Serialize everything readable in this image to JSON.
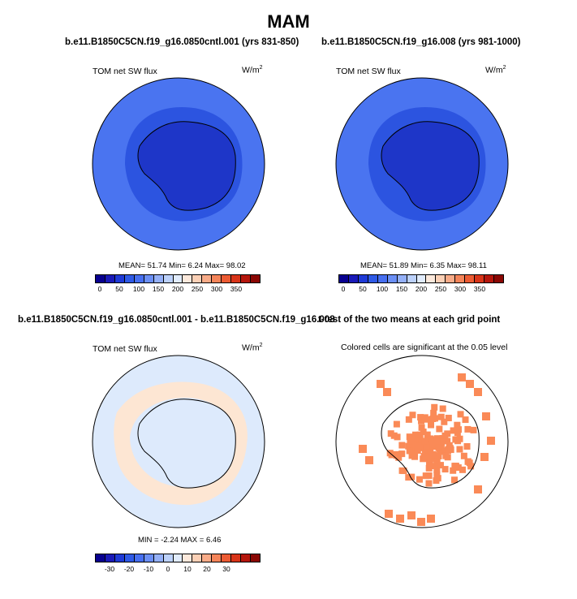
{
  "title": "MAM",
  "panels": [
    {
      "title": "b.e11.B1850C5CN.f19_g16.0850cntl.001 (yrs 831-850)",
      "left_label": "TOM net SW flux",
      "units_base": "W/m",
      "units_exp": "2",
      "stats": "MEAN=  51.74  Min=   6.24  Max=  98.02"
    },
    {
      "title": "b.e11.B1850C5CN.f19_g16.008 (yrs 981-1000)",
      "left_label": "TOM net SW flux",
      "units_base": "W/m",
      "units_exp": "2",
      "stats": "MEAN=  51.89  Min=   6.35  Max=  98.11"
    },
    {
      "title": "b.e11.B1850C5CN.f19_g16.0850cntl.001 - b.e11.B1850C5CN.f19_g16.008",
      "left_label": "TOM net SW flux",
      "units_base": "W/m",
      "units_exp": "2",
      "stats": "MIN =  -2.24  MAX =   6.46"
    },
    {
      "title": "t-test of the two means at each grid point",
      "left_label": "Colored cells are significant at the 0.05 level"
    }
  ],
  "colorbar_abs": {
    "colors": [
      "#08008f",
      "#1a1ab8",
      "#1f3ad6",
      "#2f5ae6",
      "#476ff0",
      "#6b8ff5",
      "#94b0f7",
      "#bcd1fa",
      "#e1ecfd",
      "#fce9dc",
      "#fbd0b6",
      "#f8ab88",
      "#f48459",
      "#ec5b33",
      "#d83419",
      "#b5160c",
      "#8a0703"
    ],
    "ticks": [
      "0",
      "50",
      "100",
      "150",
      "200",
      "250",
      "300",
      "350"
    ]
  },
  "colorbar_diff": {
    "colors": [
      "#08008f",
      "#1a1ab8",
      "#1f3ad6",
      "#2f5ae6",
      "#476ff0",
      "#6b8ff5",
      "#94b0f7",
      "#bcd1fa",
      "#e1ecfd",
      "#fce9dc",
      "#fbd0b6",
      "#f8ab88",
      "#f48459",
      "#ec5b33",
      "#d83419",
      "#b5160c",
      "#8a0703"
    ],
    "ticks": [
      "-30",
      "-20",
      "-10",
      "0",
      "10",
      "20",
      "30"
    ]
  },
  "fills": {
    "ocean_outer": "#4a74f0",
    "ocean_mid": "#2c54e0",
    "land": "#1e36c8",
    "diff_bg": "#ddeafc",
    "diff_pos": "#fde6d3",
    "signif": "#fa8a57"
  }
}
